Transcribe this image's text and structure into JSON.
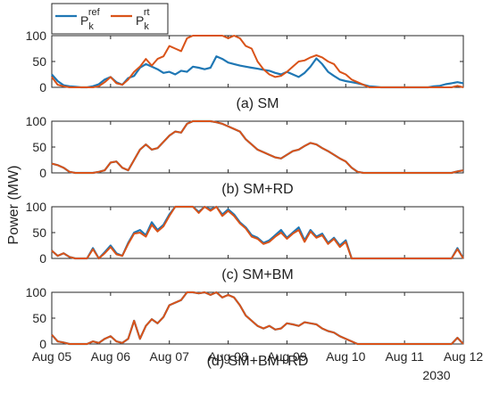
{
  "chart_data": {
    "type": "line",
    "ylabel": "Power (MW)",
    "xlim": [
      "Aug 05 2030",
      "Aug 12 2030"
    ],
    "x_ticks": [
      "Aug 05",
      "Aug 06",
      "Aug 07",
      "Aug 08",
      "Aug 09",
      "Aug 10",
      "Aug 11",
      "Aug 12"
    ],
    "x_year_label": "2030",
    "ylim": [
      0,
      100
    ],
    "y_ticks": [
      0,
      50,
      100
    ],
    "grid": false,
    "legend": {
      "placement": "top-left",
      "entries": [
        {
          "base": "P",
          "sup": "ref",
          "sub": "k",
          "color": "#1f77b4"
        },
        {
          "base": "P",
          "sup": "rt",
          "sub": "k",
          "color": "#d95319"
        }
      ]
    },
    "series_colors": {
      "ref": "#1f77b4",
      "rt": "#d95319"
    },
    "x_sample_days": [
      0.0,
      0.1,
      0.2,
      0.3,
      0.4,
      0.5,
      0.6,
      0.7,
      0.8,
      0.9,
      1.0,
      1.1,
      1.2,
      1.3,
      1.4,
      1.5,
      1.6,
      1.7,
      1.8,
      1.9,
      2.0,
      2.1,
      2.2,
      2.3,
      2.4,
      2.5,
      2.6,
      2.7,
      2.8,
      2.9,
      3.0,
      3.1,
      3.2,
      3.3,
      3.4,
      3.5,
      3.6,
      3.7,
      3.8,
      3.9,
      4.0,
      4.1,
      4.2,
      4.3,
      4.4,
      4.5,
      4.6,
      4.7,
      4.8,
      4.9,
      5.0,
      5.1,
      5.2,
      5.3,
      5.4,
      5.5,
      5.6,
      5.7,
      5.8,
      5.9,
      6.0,
      6.1,
      6.2,
      6.3,
      6.4,
      6.5,
      6.6,
      6.7,
      6.8,
      6.9,
      7.0
    ],
    "panels": [
      {
        "caption": "(a) SM",
        "series": [
          {
            "key": "ref",
            "values": [
              25,
              12,
              4,
              2,
              1,
              0,
              0,
              2,
              6,
              15,
              20,
              10,
              5,
              18,
              22,
              38,
              45,
              40,
              35,
              28,
              30,
              25,
              32,
              30,
              40,
              38,
              35,
              38,
              60,
              55,
              48,
              45,
              42,
              40,
              38,
              36,
              34,
              32,
              28,
              25,
              30,
              25,
              20,
              28,
              40,
              56,
              45,
              30,
              22,
              15,
              12,
              10,
              8,
              5,
              2,
              1,
              0,
              0,
              0,
              0,
              0,
              0,
              0,
              0,
              0,
              2,
              3,
              6,
              8,
              10,
              8
            ]
          },
          {
            "key": "rt",
            "values": [
              20,
              5,
              2,
              0,
              0,
              0,
              0,
              0,
              2,
              10,
              20,
              8,
              5,
              15,
              30,
              40,
              55,
              42,
              55,
              60,
              80,
              75,
              70,
              95,
              100,
              100,
              100,
              100,
              100,
              100,
              95,
              100,
              95,
              80,
              75,
              50,
              35,
              25,
              20,
              22,
              30,
              40,
              50,
              52,
              58,
              62,
              58,
              50,
              45,
              30,
              25,
              15,
              10,
              5,
              0,
              0,
              0,
              0,
              0,
              0,
              0,
              0,
              0,
              0,
              0,
              0,
              0,
              0,
              0,
              3,
              0
            ]
          }
        ]
      },
      {
        "caption": "(b) SM+RD",
        "series": [
          {
            "key": "ref",
            "values": [
              18,
              15,
              10,
              2,
              0,
              0,
              0,
              0,
              2,
              5,
              20,
              22,
              10,
              5,
              25,
              45,
              55,
              45,
              48,
              60,
              72,
              80,
              78,
              95,
              100,
              100,
              100,
              100,
              98,
              95,
              90,
              85,
              80,
              65,
              55,
              45,
              40,
              35,
              30,
              28,
              35,
              42,
              45,
              52,
              58,
              55,
              48,
              42,
              35,
              28,
              22,
              10,
              2,
              0,
              0,
              0,
              0,
              0,
              0,
              0,
              0,
              0,
              0,
              0,
              0,
              0,
              0,
              0,
              0,
              3,
              5
            ]
          },
          {
            "key": "rt",
            "values": [
              18,
              15,
              10,
              2,
              0,
              0,
              0,
              0,
              2,
              5,
              20,
              22,
              10,
              5,
              25,
              45,
              55,
              45,
              48,
              60,
              72,
              80,
              78,
              95,
              100,
              100,
              100,
              100,
              98,
              95,
              90,
              85,
              80,
              65,
              55,
              45,
              40,
              35,
              30,
              28,
              35,
              42,
              45,
              52,
              58,
              55,
              48,
              42,
              35,
              28,
              22,
              10,
              2,
              0,
              0,
              0,
              0,
              0,
              0,
              0,
              0,
              0,
              0,
              0,
              0,
              0,
              0,
              0,
              0,
              3,
              5
            ]
          }
        ]
      },
      {
        "caption": "(c) SM+BM",
        "series": [
          {
            "key": "ref",
            "values": [
              15,
              5,
              10,
              3,
              0,
              0,
              0,
              20,
              0,
              12,
              25,
              10,
              5,
              30,
              50,
              55,
              45,
              70,
              55,
              65,
              85,
              100,
              100,
              100,
              100,
              90,
              100,
              95,
              100,
              85,
              95,
              85,
              70,
              60,
              45,
              40,
              30,
              35,
              45,
              55,
              40,
              50,
              60,
              35,
              55,
              42,
              48,
              30,
              40,
              25,
              35,
              0,
              0,
              0,
              0,
              0,
              0,
              0,
              0,
              0,
              0,
              0,
              0,
              0,
              0,
              0,
              0,
              0,
              0,
              20,
              0
            ]
          },
          {
            "key": "rt",
            "values": [
              15,
              5,
              10,
              3,
              0,
              0,
              0,
              18,
              0,
              10,
              22,
              8,
              5,
              28,
              48,
              50,
              42,
              65,
              52,
              62,
              82,
              100,
              100,
              100,
              100,
              88,
              100,
              92,
              100,
              82,
              92,
              82,
              68,
              58,
              42,
              38,
              28,
              32,
              42,
              50,
              38,
              48,
              55,
              32,
              52,
              40,
              45,
              28,
              38,
              22,
              32,
              0,
              0,
              0,
              0,
              0,
              0,
              0,
              0,
              0,
              0,
              0,
              0,
              0,
              0,
              0,
              0,
              0,
              0,
              18,
              0
            ]
          }
        ]
      },
      {
        "caption": "(d) SM+BM+RD",
        "series": [
          {
            "key": "ref",
            "values": [
              18,
              5,
              3,
              0,
              0,
              0,
              0,
              5,
              2,
              10,
              15,
              5,
              2,
              10,
              45,
              10,
              35,
              48,
              40,
              52,
              75,
              80,
              85,
              100,
              100,
              98,
              100,
              95,
              100,
              90,
              95,
              90,
              75,
              55,
              45,
              35,
              30,
              35,
              28,
              30,
              40,
              38,
              35,
              42,
              40,
              38,
              30,
              25,
              22,
              15,
              10,
              5,
              0,
              0,
              0,
              0,
              0,
              0,
              0,
              0,
              0,
              0,
              0,
              0,
              0,
              0,
              0,
              0,
              0,
              12,
              0
            ]
          },
          {
            "key": "rt",
            "values": [
              18,
              5,
              3,
              0,
              0,
              0,
              0,
              5,
              2,
              10,
              15,
              5,
              2,
              10,
              45,
              10,
              35,
              48,
              40,
              52,
              75,
              80,
              85,
              100,
              100,
              98,
              100,
              95,
              100,
              90,
              95,
              90,
              75,
              55,
              45,
              35,
              30,
              35,
              28,
              30,
              40,
              38,
              35,
              42,
              40,
              38,
              30,
              25,
              22,
              15,
              10,
              5,
              0,
              0,
              0,
              0,
              0,
              0,
              0,
              0,
              0,
              0,
              0,
              0,
              0,
              0,
              0,
              0,
              0,
              12,
              0
            ]
          }
        ]
      }
    ]
  }
}
